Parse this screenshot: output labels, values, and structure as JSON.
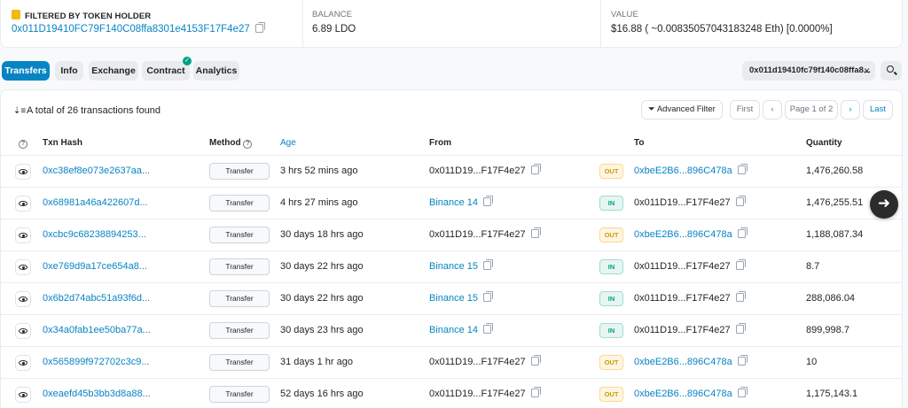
{
  "summary": {
    "holder_label": "FILTERED BY TOKEN HOLDER",
    "holder_address": "0x011D19410FC79F140C08ffa8301e4153F17F4e27",
    "balance_label": "BALANCE",
    "balance_value": "6.89 LDO",
    "value_label": "VALUE",
    "value_value": "$16.88 ( ~0.00835057043183248 Eth) [0.0000%]"
  },
  "tabs": [
    "Transfers",
    "Info",
    "Exchange",
    "Contract",
    "Analytics"
  ],
  "filter_chip": "0x011d19410fc79f140c08ffa8...",
  "toolbar": {
    "total_text": "A total of 26 transactions found",
    "advanced_filter": "Advanced Filter",
    "first": "First",
    "page_info": "Page 1 of 2",
    "last": "Last"
  },
  "columns": {
    "txn_hash": "Txn Hash",
    "method": "Method",
    "age": "Age",
    "from": "From",
    "to": "To",
    "quantity": "Quantity"
  },
  "rows": [
    {
      "hash": "0xc38ef8e073e2637aa...",
      "method": "Transfer",
      "age": "3 hrs 52 mins ago",
      "from": "0x011D19...F17F4e27",
      "from_link": false,
      "dir": "OUT",
      "to": "0xbeE2B6...896C478a",
      "to_link": true,
      "qty": "1,476,260.58"
    },
    {
      "hash": "0x68981a46a422607d...",
      "method": "Transfer",
      "age": "4 hrs 27 mins ago",
      "from": "Binance 14",
      "from_link": true,
      "dir": "IN",
      "to": "0x011D19...F17F4e27",
      "to_link": false,
      "qty": "1,476,255.51"
    },
    {
      "hash": "0xcbc9c68238894253...",
      "method": "Transfer",
      "age": "30 days 18 hrs ago",
      "from": "0x011D19...F17F4e27",
      "from_link": false,
      "dir": "OUT",
      "to": "0xbeE2B6...896C478a",
      "to_link": true,
      "qty": "1,188,087.34"
    },
    {
      "hash": "0xe769d9a17ce654a8...",
      "method": "Transfer",
      "age": "30 days 22 hrs ago",
      "from": "Binance 15",
      "from_link": true,
      "dir": "IN",
      "to": "0x011D19...F17F4e27",
      "to_link": false,
      "qty": "8.7"
    },
    {
      "hash": "0x6b2d74abc51a93f6d...",
      "method": "Transfer",
      "age": "30 days 22 hrs ago",
      "from": "Binance 15",
      "from_link": true,
      "dir": "IN",
      "to": "0x011D19...F17F4e27",
      "to_link": false,
      "qty": "288,086.04"
    },
    {
      "hash": "0x34a0fab1ee50ba77a...",
      "method": "Transfer",
      "age": "30 days 23 hrs ago",
      "from": "Binance 14",
      "from_link": true,
      "dir": "IN",
      "to": "0x011D19...F17F4e27",
      "to_link": false,
      "qty": "899,998.7"
    },
    {
      "hash": "0x565899f972702c3c9...",
      "method": "Transfer",
      "age": "31 days 1 hr ago",
      "from": "0x011D19...F17F4e27",
      "from_link": false,
      "dir": "OUT",
      "to": "0xbeE2B6...896C478a",
      "to_link": true,
      "qty": "10"
    },
    {
      "hash": "0xeaefd45b3bb3d8a88...",
      "method": "Transfer",
      "age": "52 days 16 hrs ago",
      "from": "0x011D19...F17F4e27",
      "from_link": false,
      "dir": "OUT",
      "to": "0xbeE2B6...896C478a",
      "to_link": true,
      "qty": "1,175,143.1"
    }
  ],
  "colors": {
    "accent": "#0784c3",
    "out_text": "#cc9a06",
    "in_text": "#00a186"
  }
}
